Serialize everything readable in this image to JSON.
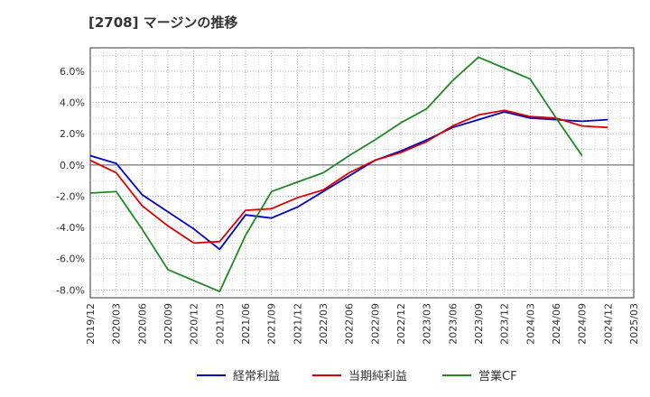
{
  "chart_data": {
    "type": "line",
    "title": "[2708]  マージンの推移",
    "xlabel": "",
    "ylabel": "",
    "ylim": [
      -8.5,
      7.5
    ],
    "xlim": [
      "2019/12",
      "2025/03"
    ],
    "y_ticks": [
      -8,
      -6,
      -4,
      -2,
      0,
      2,
      4,
      6
    ],
    "y_tick_labels": [
      "-8.0%",
      "-6.0%",
      "-4.0%",
      "-2.0%",
      "0.0%",
      "2.0%",
      "4.0%",
      "6.0%"
    ],
    "x_ticks": [
      "2019/12",
      "2020/03",
      "2020/06",
      "2020/09",
      "2020/12",
      "2021/03",
      "2021/06",
      "2021/09",
      "2021/12",
      "2022/03",
      "2022/06",
      "2022/09",
      "2022/12",
      "2023/03",
      "2023/06",
      "2023/09",
      "2023/12",
      "2024/03",
      "2024/06",
      "2024/09",
      "2024/12",
      "2025/03"
    ],
    "grid": true,
    "legend_position": "bottom",
    "series": [
      {
        "name": "経常利益",
        "color": "#0000cc",
        "x": [
          "2019/12",
          "2020/03",
          "2020/06",
          "2020/09",
          "2020/12",
          "2021/03",
          "2021/06",
          "2021/09",
          "2021/12",
          "2022/03",
          "2022/06",
          "2022/09",
          "2022/12",
          "2023/03",
          "2023/06",
          "2023/09",
          "2023/12",
          "2024/03",
          "2024/06",
          "2024/09",
          "2024/12"
        ],
        "values": [
          0.6,
          0.1,
          -1.9,
          -3.0,
          -4.1,
          -5.4,
          -3.2,
          -3.4,
          -2.7,
          -1.7,
          -0.7,
          0.3,
          0.9,
          1.6,
          2.4,
          2.9,
          3.4,
          3.0,
          2.9,
          2.8,
          2.9
        ]
      },
      {
        "name": "当期純利益",
        "color": "#dd0000",
        "x": [
          "2019/12",
          "2020/03",
          "2020/06",
          "2020/09",
          "2020/12",
          "2021/03",
          "2021/06",
          "2021/09",
          "2021/12",
          "2022/03",
          "2022/06",
          "2022/09",
          "2022/12",
          "2023/03",
          "2023/06",
          "2023/09",
          "2023/12",
          "2024/03",
          "2024/06",
          "2024/09",
          "2024/12"
        ],
        "values": [
          0.3,
          -0.5,
          -2.6,
          -3.9,
          -5.0,
          -4.9,
          -2.9,
          -2.8,
          -2.1,
          -1.6,
          -0.5,
          0.3,
          0.8,
          1.5,
          2.5,
          3.2,
          3.5,
          3.1,
          3.0,
          2.5,
          2.4
        ]
      },
      {
        "name": "営業CF",
        "color": "#228822",
        "x": [
          "2019/12",
          "2020/03",
          "2020/06",
          "2020/09",
          "2020/12",
          "2021/03",
          "2021/06",
          "2021/09",
          "2021/12",
          "2022/03",
          "2022/06",
          "2022/09",
          "2022/12",
          "2023/03",
          "2023/06",
          "2023/09",
          "2023/12",
          "2024/03",
          "2024/06",
          "2024/09"
        ],
        "values": [
          -1.8,
          -1.7,
          -4.1,
          -6.7,
          -7.4,
          -8.1,
          -4.5,
          -1.7,
          -1.1,
          -0.5,
          0.6,
          1.6,
          2.7,
          3.6,
          5.4,
          6.9,
          6.2,
          5.5,
          3.0,
          0.6
        ]
      }
    ]
  }
}
